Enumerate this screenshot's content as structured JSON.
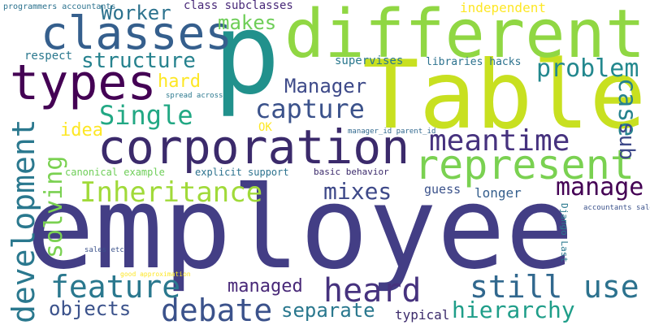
{
  "words": {
    "employee": "employee",
    "p": "p",
    "table": "Table",
    "different": "different",
    "classes": "classes",
    "types": "types",
    "corporation": "corporation",
    "represent": "represent",
    "debate": "debate",
    "heard": "heard",
    "feature": "feature",
    "still": "still",
    "use": "use",
    "hierarchy": "hierarchy",
    "separate": "separate",
    "objects": "objects",
    "managed": "managed",
    "development": "development",
    "solving": "solving",
    "single": "Single",
    "inheritance": "Inheritance",
    "capture": "capture",
    "meantime": "meantime",
    "manage": "manage",
    "mixes": "mixes",
    "problem": "problem",
    "case": "case",
    "sub": "sub",
    "structure": "structure",
    "manager": "Manager",
    "worker": "Worker",
    "makes": "makes",
    "hard": "hard",
    "idea": "idea",
    "longer": "longer",
    "guess": "guess",
    "typical": "typical",
    "ok": "OK",
    "respect": "respect",
    "supervises": "supervises",
    "libraries_hacks": "libraries hacks",
    "independent": "independent",
    "class_subclasses": "class subclasses",
    "programmers_accountants": "programmers accountants",
    "canonical_example": "canonical example",
    "explicit_support": "explicit support",
    "basic_behavior": "basic behavior",
    "manager_id_parent_id": "manager_id parent_id",
    "accountants_sales": "accountants sales",
    "django_last": "Django Last",
    "sales_etc": "sales etc",
    "good_approximation": "good approximation",
    "spread_across": "spread across"
  }
}
